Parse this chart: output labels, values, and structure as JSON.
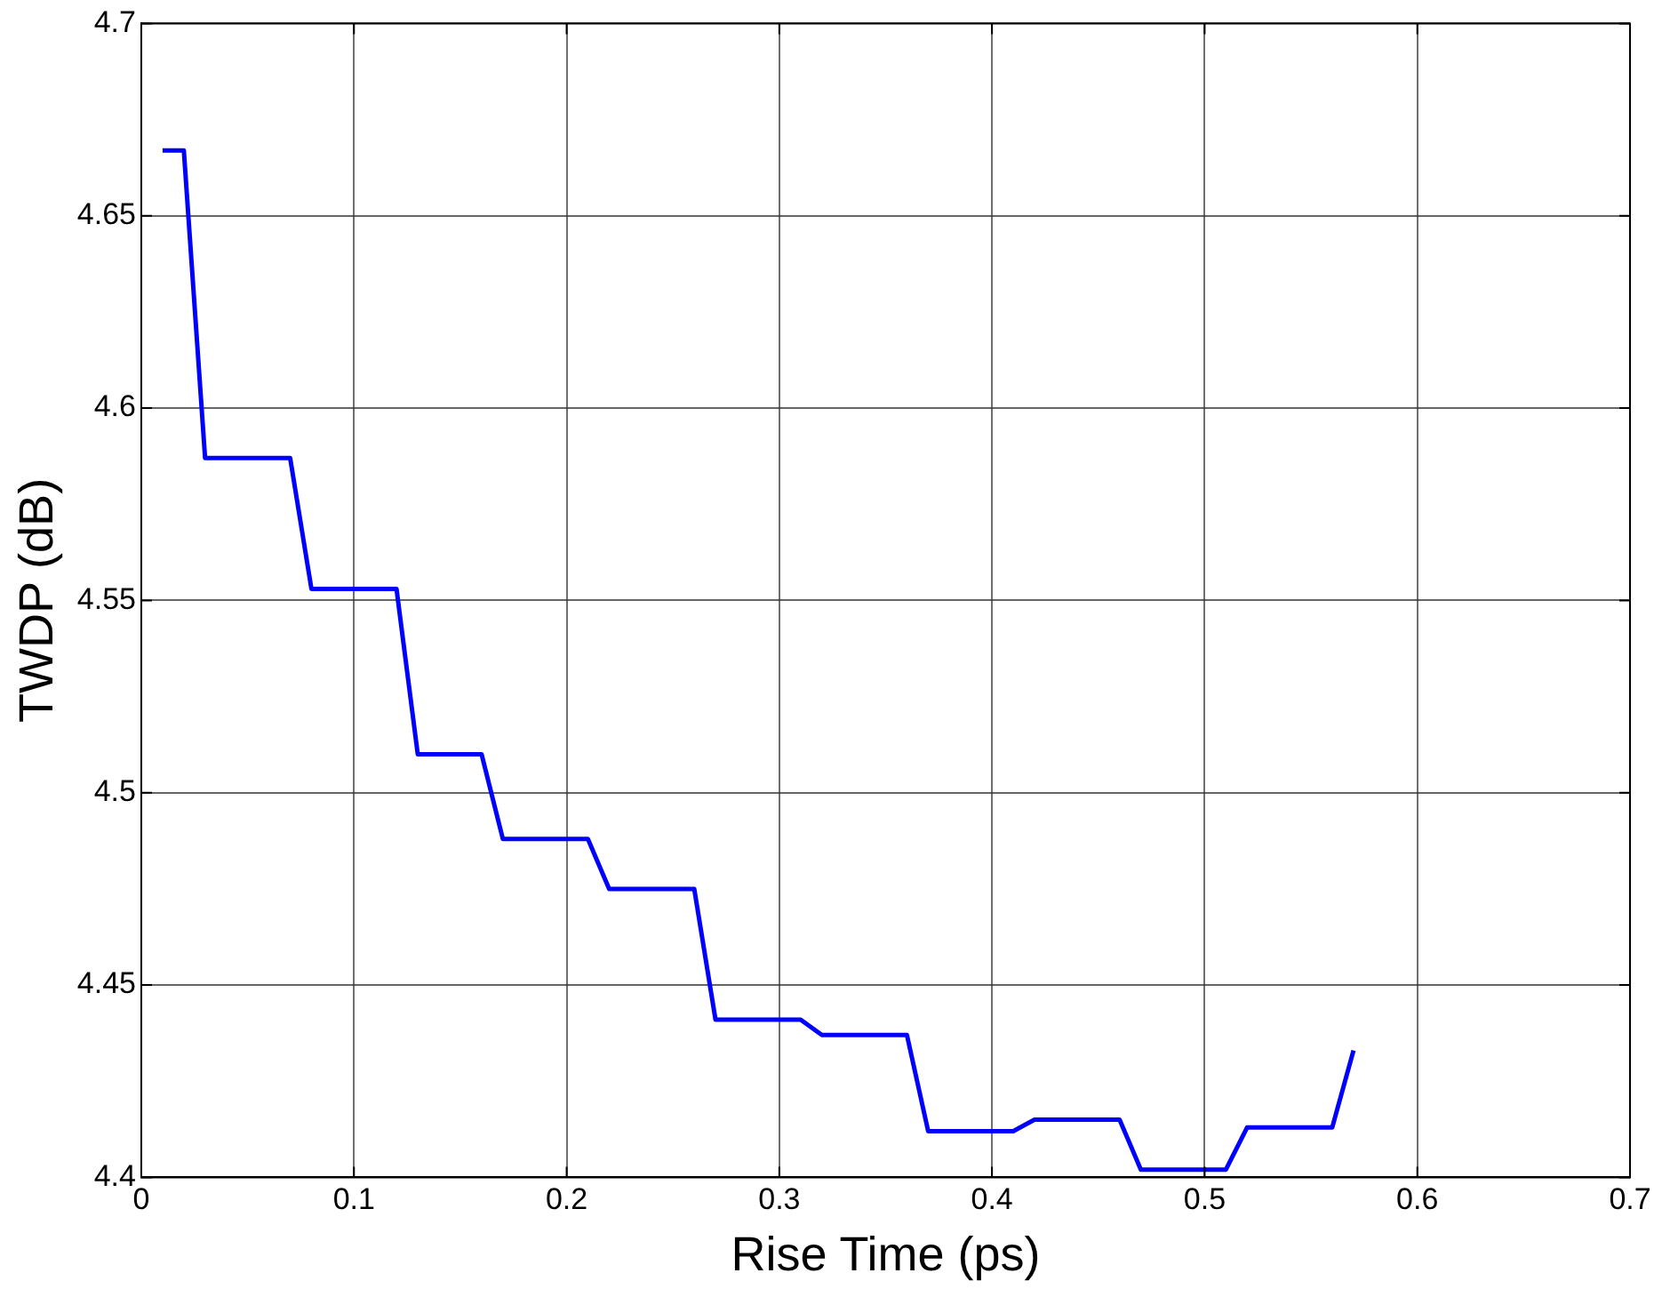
{
  "chart_data": {
    "type": "line",
    "xlabel": "Rise Time (ps)",
    "ylabel": "TWDP (dB)",
    "x": [
      0.01,
      0.02,
      0.03,
      0.07,
      0.08,
      0.12,
      0.13,
      0.16,
      0.17,
      0.21,
      0.22,
      0.26,
      0.27,
      0.31,
      0.32,
      0.36,
      0.37,
      0.41,
      0.42,
      0.46,
      0.47,
      0.51,
      0.52,
      0.56,
      0.57
    ],
    "series": [
      {
        "color": "#0000ff",
        "values": [
          4.667,
          4.667,
          4.587,
          4.587,
          4.553,
          4.553,
          4.51,
          4.51,
          4.488,
          4.488,
          4.475,
          4.475,
          4.441,
          4.441,
          4.437,
          4.437,
          4.412,
          4.412,
          4.415,
          4.415,
          4.402,
          4.402,
          4.413,
          4.413,
          4.433
        ]
      }
    ],
    "xlim": [
      0,
      0.7
    ],
    "xticks": [
      0,
      0.1,
      0.2,
      0.3,
      0.4,
      0.5,
      0.6,
      0.7
    ],
    "ylim": [
      4.4,
      4.7
    ],
    "yticks": [
      4.4,
      4.45,
      4.5,
      4.55,
      4.6,
      4.65,
      4.7
    ],
    "grid": true,
    "legend": false,
    "marker": "none",
    "line_style": "solid"
  }
}
